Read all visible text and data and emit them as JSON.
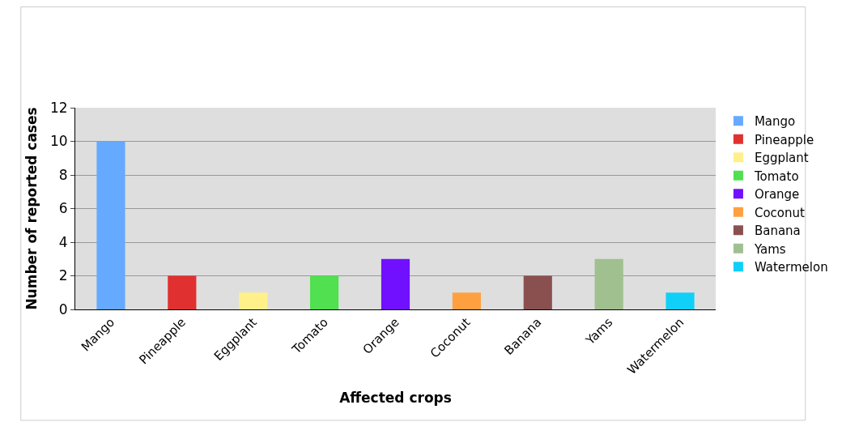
{
  "chart_data": {
    "type": "bar",
    "xlabel": "Affected crops",
    "ylabel": "Number of reported cases",
    "categories": [
      "Mango",
      "Pineapple",
      "Eggplant",
      "Tomato",
      "Orange",
      "Coconut",
      "Banana",
      "Yams",
      "Watermelon"
    ],
    "series": [
      {
        "name": "Mango",
        "color": "#66aaff",
        "values": [
          10,
          null,
          null,
          null,
          null,
          null,
          null,
          null,
          null
        ]
      },
      {
        "name": "Pineapple",
        "color": "#e03030",
        "values": [
          null,
          2,
          null,
          null,
          null,
          null,
          null,
          null,
          null
        ]
      },
      {
        "name": "Eggplant",
        "color": "#fff08a",
        "values": [
          null,
          null,
          1,
          null,
          null,
          null,
          null,
          null,
          null
        ]
      },
      {
        "name": "Tomato",
        "color": "#50e050",
        "values": [
          null,
          null,
          null,
          2,
          null,
          null,
          null,
          null,
          null
        ]
      },
      {
        "name": "Orange",
        "color": "#7010ff",
        "values": [
          null,
          null,
          null,
          null,
          3,
          null,
          null,
          null,
          null
        ]
      },
      {
        "name": "Coconut",
        "color": "#ffa040",
        "values": [
          null,
          null,
          null,
          null,
          null,
          1,
          null,
          null,
          null
        ]
      },
      {
        "name": "Banana",
        "color": "#8a5050",
        "values": [
          null,
          null,
          null,
          null,
          null,
          null,
          2,
          null,
          null
        ]
      },
      {
        "name": "Yams",
        "color": "#a0c090",
        "values": [
          null,
          null,
          null,
          null,
          null,
          null,
          null,
          3,
          null
        ]
      },
      {
        "name": "Watermelon",
        "color": "#10d0f8",
        "values": [
          null,
          null,
          null,
          null,
          null,
          null,
          null,
          null,
          1
        ]
      }
    ],
    "ylim": [
      0,
      12
    ],
    "yticks": [
      0,
      2,
      4,
      6,
      8,
      10,
      12
    ],
    "grid": "y",
    "legend": "right"
  }
}
